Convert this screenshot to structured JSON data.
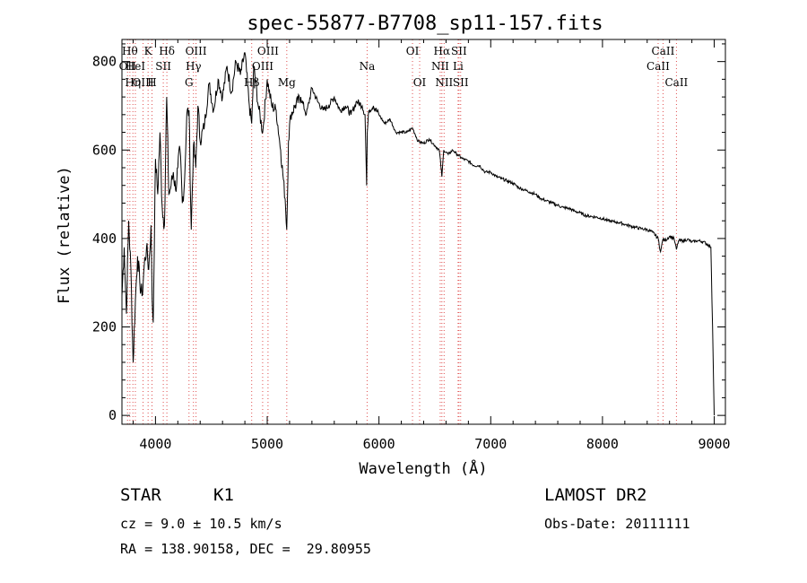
{
  "chart_data": {
    "type": "line",
    "title": "spec-55877-B7708_sp11-157.fits",
    "xlabel": "Wavelength (Å)",
    "ylabel": "Flux (relative)",
    "xlim": [
      3700,
      9100
    ],
    "ylim": [
      -20,
      850
    ],
    "xticks": [
      4000,
      5000,
      6000,
      7000,
      8000,
      9000
    ],
    "yticks": [
      0,
      200,
      400,
      600,
      800
    ],
    "series": [
      {
        "x": [
          3700,
          3720,
          3740,
          3760,
          3780,
          3800,
          3820,
          3840,
          3860,
          3880,
          3900,
          3920,
          3940,
          3960,
          3970,
          3980,
          4000,
          4020,
          4040,
          4060,
          4080,
          4100,
          4120,
          4140,
          4160,
          4180,
          4200,
          4220,
          4240,
          4260,
          4280,
          4300,
          4320,
          4340,
          4360,
          4380,
          4400,
          4440,
          4480,
          4520,
          4560,
          4600,
          4640,
          4680,
          4720,
          4760,
          4800,
          4840,
          4861,
          4880,
          4920,
          4960,
          5000,
          5040,
          5080,
          5120,
          5160,
          5175,
          5190,
          5210,
          5250,
          5300,
          5350,
          5400,
          5450,
          5500,
          5550,
          5600,
          5650,
          5700,
          5750,
          5800,
          5850,
          5875,
          5890,
          5895,
          5910,
          5950,
          6000,
          6050,
          6100,
          6150,
          6200,
          6250,
          6300,
          6350,
          6400,
          6450,
          6500,
          6540,
          6563,
          6580,
          6620,
          6660,
          6700,
          6750,
          6800,
          6850,
          6900,
          6950,
          7000,
          7050,
          7100,
          7150,
          7200,
          7250,
          7300,
          7350,
          7400,
          7450,
          7500,
          7550,
          7600,
          7650,
          7700,
          7750,
          7800,
          7850,
          7900,
          7950,
          8000,
          8050,
          8100,
          8150,
          8200,
          8250,
          8300,
          8350,
          8400,
          8450,
          8498,
          8520,
          8542,
          8560,
          8600,
          8640,
          8662,
          8680,
          8720,
          8760,
          8800,
          8850,
          8900,
          8950,
          8970,
          8985,
          9000
        ],
        "y": [
          270,
          380,
          230,
          440,
          330,
          120,
          260,
          360,
          300,
          270,
          340,
          380,
          330,
          430,
          260,
          210,
          580,
          500,
          640,
          470,
          430,
          720,
          500,
          520,
          550,
          510,
          560,
          600,
          480,
          530,
          680,
          690,
          420,
          610,
          560,
          700,
          620,
          660,
          750,
          690,
          760,
          720,
          790,
          730,
          800,
          770,
          820,
          700,
          660,
          790,
          700,
          640,
          760,
          700,
          690,
          600,
          490,
          420,
          620,
          680,
          700,
          720,
          680,
          740,
          710,
          690,
          700,
          720,
          690,
          700,
          680,
          710,
          700,
          680,
          520,
          640,
          690,
          700,
          680,
          660,
          670,
          640,
          640,
          640,
          650,
          620,
          615,
          625,
          610,
          600,
          540,
          600,
          590,
          600,
          590,
          580,
          575,
          565,
          565,
          550,
          550,
          540,
          535,
          530,
          525,
          515,
          510,
          505,
          500,
          490,
          485,
          480,
          475,
          470,
          468,
          462,
          458,
          452,
          450,
          448,
          445,
          440,
          438,
          436,
          432,
          428,
          425,
          422,
          420,
          414,
          400,
          370,
          400,
          395,
          405,
          400,
          375,
          395,
          395,
          398,
          392,
          395,
          393,
          385,
          380,
          200,
          0
        ]
      }
    ],
    "spectral_lines": [
      {
        "x": 3750,
        "label": "OII",
        "row": 1
      },
      {
        "x": 3771,
        "label": "Hθ",
        "row": 0
      },
      {
        "x": 3798,
        "label": "Hη",
        "row": 2
      },
      {
        "x": 3820,
        "label": "HeI",
        "row": 1
      },
      {
        "x": 3889,
        "label": "OIII",
        "row": 2
      },
      {
        "x": 3934,
        "label": "K",
        "row": 0
      },
      {
        "x": 3969,
        "label": "H",
        "row": 2
      },
      {
        "x": 4070,
        "label": "SII",
        "row": 1
      },
      {
        "x": 4102,
        "label": "Hδ",
        "row": 0
      },
      {
        "x": 4300,
        "label": "G",
        "row": 2
      },
      {
        "x": 4340,
        "label": "Hγ",
        "row": 1
      },
      {
        "x": 4363,
        "label": "OIII",
        "row": 0
      },
      {
        "x": 4861,
        "label": "Hβ",
        "row": 2
      },
      {
        "x": 4959,
        "label": "OIII",
        "row": 1
      },
      {
        "x": 5007,
        "label": "OIII",
        "row": 0
      },
      {
        "x": 5175,
        "label": "Mg",
        "row": 2
      },
      {
        "x": 5894,
        "label": "Na",
        "row": 1
      },
      {
        "x": 6300,
        "label": "OI",
        "row": 0
      },
      {
        "x": 6364,
        "label": "OI",
        "row": 2
      },
      {
        "x": 6548,
        "label": "NII",
        "row": 1
      },
      {
        "x": 6563,
        "label": "Hα",
        "row": 0
      },
      {
        "x": 6583,
        "label": "NII",
        "row": 2
      },
      {
        "x": 6708,
        "label": "Li",
        "row": 1
      },
      {
        "x": 6716,
        "label": "SII",
        "row": 0
      },
      {
        "x": 6731,
        "label": "SII",
        "row": 2
      },
      {
        "x": 8498,
        "label": "CaII",
        "row": 1
      },
      {
        "x": 8542,
        "label": "CaII",
        "row": 0
      },
      {
        "x": 8662,
        "label": "CaII",
        "row": 2
      }
    ],
    "grid": false,
    "colors": {
      "spectrum": "#000000",
      "line_markers": "#e05050",
      "axes": "#000000"
    }
  },
  "info": {
    "object_type": "STAR",
    "subclass": "K1",
    "survey": "LAMOST DR2",
    "cz": "cz = 9.0 ± 10.5 km/s",
    "obs_date": "Obs-Date: 20111111",
    "coords": "RA = 138.90158, DEC =  29.80955"
  }
}
